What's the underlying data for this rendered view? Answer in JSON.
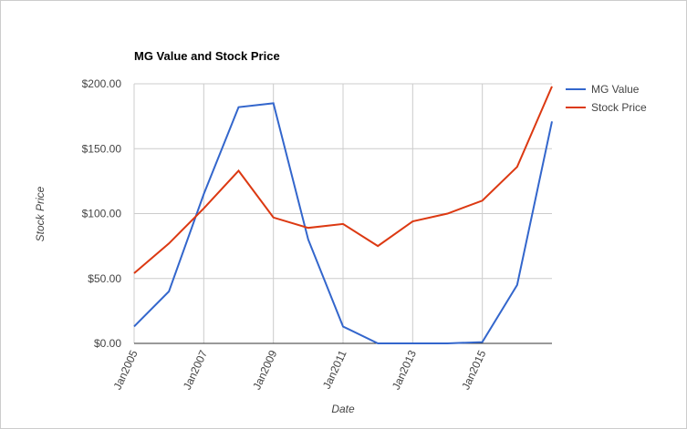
{
  "chart_data": {
    "type": "line",
    "title": "MG Value and Stock Price",
    "x_label": "Date",
    "y_label": "Stock Price",
    "categories": [
      "Jan2005",
      null,
      "Jan2007",
      null,
      "Jan2009",
      null,
      "Jan2011",
      null,
      "Jan2013",
      null,
      "Jan2015",
      null,
      null
    ],
    "series": [
      {
        "name": "MG Value",
        "color": "#3366cc",
        "values": [
          13,
          40,
          115,
          182,
          185,
          80,
          13,
          0,
          0,
          0,
          1,
          45,
          171
        ]
      },
      {
        "name": "Stock Price",
        "color": "#dc3912",
        "values": [
          54,
          77,
          104,
          133,
          97,
          89,
          92,
          75,
          94,
          100,
          110,
          136,
          198
        ]
      }
    ],
    "ylim": [
      0,
      200
    ],
    "yticks": [
      {
        "value": 0,
        "label": "$0.00"
      },
      {
        "value": 50,
        "label": "$50.00"
      },
      {
        "value": 100,
        "label": "$100.00"
      },
      {
        "value": 150,
        "label": "$150.00"
      },
      {
        "value": 200,
        "label": "$200.00"
      }
    ],
    "grid": true,
    "legend": "right"
  }
}
